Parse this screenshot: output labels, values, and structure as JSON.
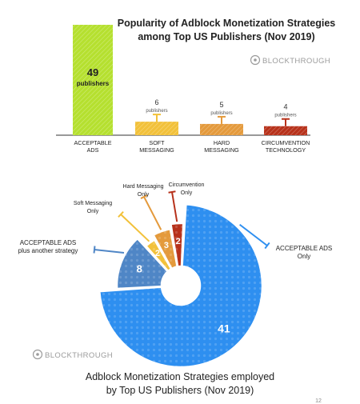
{
  "brand": "BLOCKTHROUGH",
  "page_number": "12",
  "colors": {
    "acceptable": "#b5e02f",
    "soft": "#f2c13a",
    "hard": "#e49a3c",
    "circ": "#b7321b",
    "donut_main": "#2e8ff0",
    "donut_plus": "#4f86c6",
    "text_dark": "#222222",
    "brand_gray": "#9b9b9b"
  },
  "chart_data": [
    {
      "type": "bar",
      "title": "Popularity of Adblock Monetization Strategies among Top US Publishers (Nov 2019)",
      "title_lines": [
        "Popularity of Adblock Monetization Strategies",
        "among Top US Publishers (Nov 2019)"
      ],
      "categories": [
        "ACCEPTABLE ADS",
        "SOFT MESSAGING",
        "HARD MESSAGING",
        "CIRCUMVENTION TECHNOLOGY"
      ],
      "category_lines": [
        [
          "ACCEPTABLE",
          "ADS"
        ],
        [
          "SOFT",
          "MESSAGING"
        ],
        [
          "HARD",
          "MESSAGING"
        ],
        [
          "CIRCUMVENTION",
          "TECHNOLOGY"
        ]
      ],
      "values": [
        49,
        6,
        5,
        4
      ],
      "value_unit": "publishers",
      "ylim": [
        0,
        49
      ]
    },
    {
      "type": "pie",
      "title": "Adblock Monetization Strategies employed by Top US Publishers (Nov 2019)",
      "title_lines": [
        "Adblock Monetization Strategies employed",
        "by Top US Publishers (Nov 2019)"
      ],
      "slices": [
        {
          "label": "ACCEPTABLE ADS Only",
          "label_lines": [
            "ACCEPTABLE ADS",
            "Only"
          ],
          "value": 41
        },
        {
          "label": "ACCEPTABLE ADS plus another strategy",
          "label_lines": [
            "ACCEPTABLE ADS",
            "plus another strategy"
          ],
          "value": 8
        },
        {
          "label": "Soft Messaging Only",
          "label_lines": [
            "Soft Messaging",
            "Only"
          ],
          "value": 2
        },
        {
          "label": "Hard Messaging Only",
          "label_lines": [
            "Hard Messaging",
            "Only"
          ],
          "value": 3
        },
        {
          "label": "Circumvention Only",
          "label_lines": [
            "Circumvention",
            "Only"
          ],
          "value": 2
        }
      ]
    }
  ]
}
